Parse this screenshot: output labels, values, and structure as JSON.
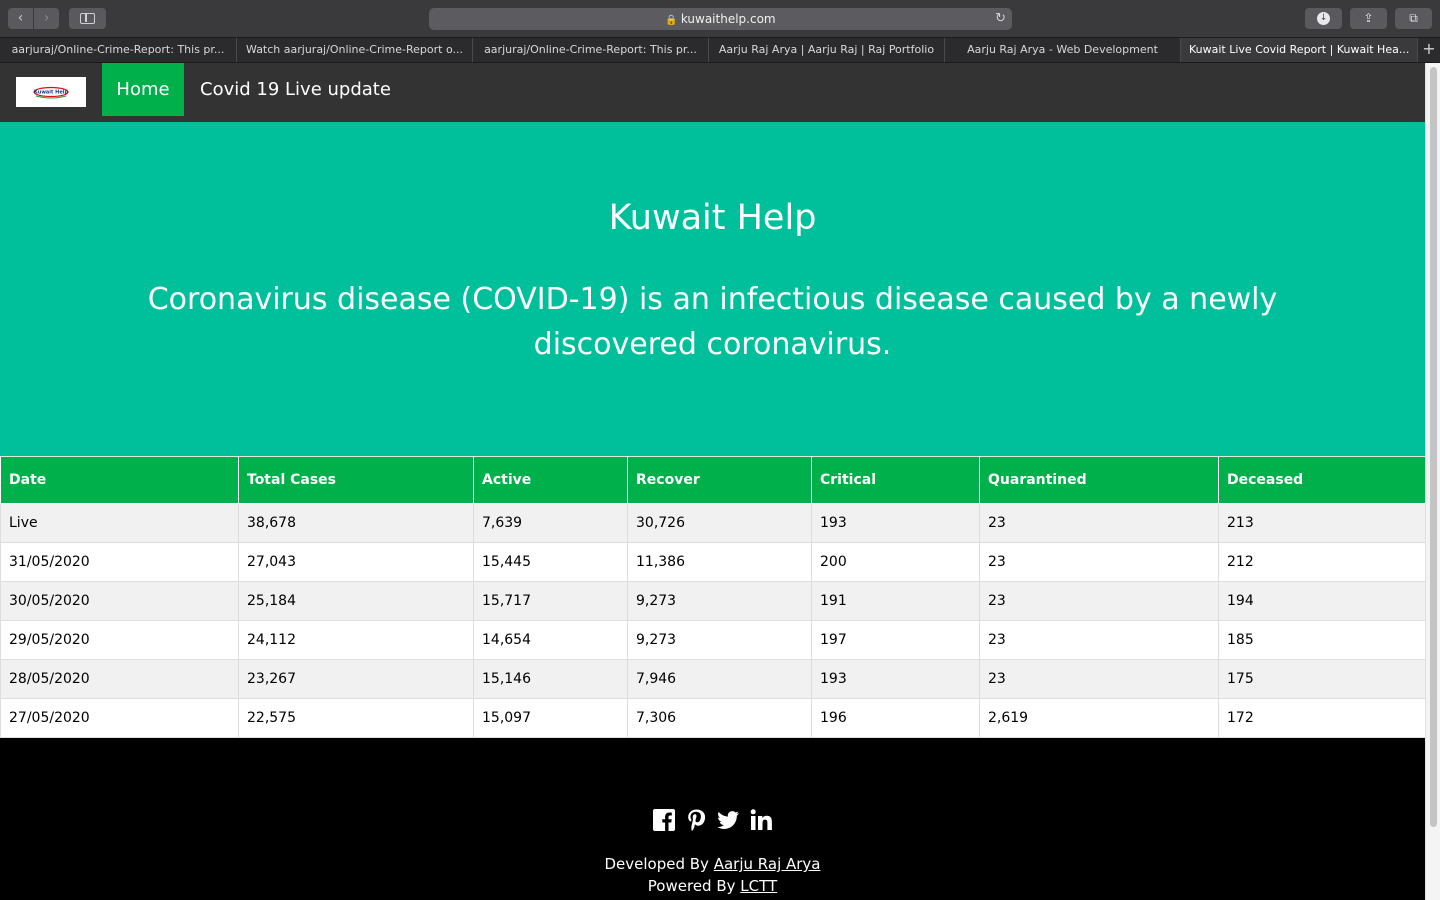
{
  "browser": {
    "url": "kuwaithelp.com",
    "nav_back": "‹",
    "nav_forward": "›",
    "tabs": [
      {
        "label": "aarjuraj/Online-Crime-Report: This pr..."
      },
      {
        "label": "Watch aarjuraj/Online-Crime-Report o..."
      },
      {
        "label": "aarjuraj/Online-Crime-Report: This pr..."
      },
      {
        "label": "Aarju Raj Arya | Aarju Raj | Raj Portfolio"
      },
      {
        "label": "Aarju Raj Arya - Web Development"
      },
      {
        "label": "Kuwait Live Covid Report | Kuwait Hea..."
      }
    ],
    "new_tab": "+"
  },
  "site_nav": {
    "logo_text": "Kuwait Help",
    "home": "Home",
    "covid": "Covid 19 Live update"
  },
  "hero": {
    "title": "Kuwait Help",
    "subtitle": "Coronavirus disease (COVID-19) is an infectious disease caused by a newly discovered coronavirus."
  },
  "table": {
    "headers": [
      "Date",
      "Total Cases",
      "Active",
      "Recover",
      "Critical",
      "Quarantined",
      "Deceased"
    ],
    "rows": [
      [
        "Live",
        "38,678",
        "7,639",
        "30,726",
        "193",
        "23",
        "213"
      ],
      [
        "31/05/2020",
        "27,043",
        "15,445",
        "11,386",
        "200",
        "23",
        "212"
      ],
      [
        "30/05/2020",
        "25,184",
        "15,717",
        "9,273",
        "191",
        "23",
        "194"
      ],
      [
        "29/05/2020",
        "24,112",
        "14,654",
        "9,273",
        "197",
        "23",
        "185"
      ],
      [
        "28/05/2020",
        "23,267",
        "15,146",
        "7,946",
        "193",
        "23",
        "175"
      ],
      [
        "27/05/2020",
        "22,575",
        "15,097",
        "7,306",
        "196",
        "2,619",
        "172"
      ]
    ]
  },
  "footer": {
    "developed_prefix": "Developed By",
    "developer": "Aarju Raj Arya",
    "powered_prefix": "Powered By",
    "powered": "LCTT",
    "social_icons": [
      "facebook-icon",
      "pinterest-icon",
      "twitter-icon",
      "linkedin-icon"
    ]
  },
  "colors": {
    "nav_bg": "#333333",
    "accent_green": "#00b04b",
    "hero_teal": "#00c09c"
  }
}
